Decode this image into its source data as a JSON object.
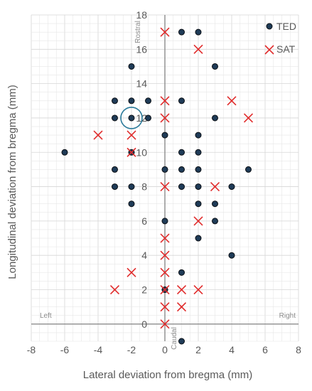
{
  "chart_data": {
    "type": "scatter",
    "xlabel": "Lateral deviation from bregma (mm)",
    "ylabel": "Longitudinal deviation from bregma (mm)",
    "xlim": [
      -8,
      8
    ],
    "ylim": [
      -1,
      18
    ],
    "x_ticks": [
      -8,
      -6,
      -4,
      -2,
      0,
      2,
      4,
      6,
      8
    ],
    "y_ticks": [
      0,
      2,
      4,
      6,
      8,
      10,
      12,
      14,
      16,
      18
    ],
    "tick_labels_x": [
      "-8",
      "-6",
      "-4",
      "-2",
      "0",
      "2",
      "4",
      "6",
      "8"
    ],
    "tick_labels_y": [
      "0",
      "2",
      "4",
      "6",
      "8",
      "10",
      "12",
      "14",
      "16",
      "18"
    ],
    "grid": true,
    "legend_position": "top-right",
    "annotations": {
      "rostral": "Rostral",
      "caudal": "Caudal",
      "left": "Left",
      "right": "Right"
    },
    "highlight": {
      "x": -2,
      "y": 12
    },
    "series": [
      {
        "name": "TED",
        "marker": "circle",
        "color": "#1f3b57",
        "points": [
          [
            1,
            17
          ],
          [
            2,
            17
          ],
          [
            -2,
            15
          ],
          [
            3,
            15
          ],
          [
            -3,
            13
          ],
          [
            -2,
            13
          ],
          [
            -1,
            13
          ],
          [
            1,
            13
          ],
          [
            -3,
            12
          ],
          [
            -2,
            12
          ],
          [
            -1,
            12
          ],
          [
            3,
            12
          ],
          [
            0,
            11
          ],
          [
            2,
            11
          ],
          [
            -6,
            10
          ],
          [
            -2,
            10
          ],
          [
            1,
            10
          ],
          [
            2,
            10
          ],
          [
            -3,
            9
          ],
          [
            0,
            9
          ],
          [
            1,
            9
          ],
          [
            2,
            9
          ],
          [
            5,
            9
          ],
          [
            -3,
            8
          ],
          [
            -2,
            8
          ],
          [
            1,
            8
          ],
          [
            2,
            8
          ],
          [
            4,
            8
          ],
          [
            -2,
            7
          ],
          [
            2,
            7
          ],
          [
            3,
            7
          ],
          [
            0,
            6
          ],
          [
            3,
            6
          ],
          [
            2,
            5
          ],
          [
            4,
            4
          ],
          [
            1,
            3
          ],
          [
            0,
            2
          ],
          [
            1,
            -1
          ]
        ]
      },
      {
        "name": "SAT",
        "marker": "x",
        "color": "#e02b2b",
        "points": [
          [
            0,
            17
          ],
          [
            2,
            16
          ],
          [
            0,
            13
          ],
          [
            4,
            13
          ],
          [
            0,
            12
          ],
          [
            5,
            12
          ],
          [
            -4,
            11
          ],
          [
            -2,
            11
          ],
          [
            -2,
            10
          ],
          [
            0,
            8
          ],
          [
            3,
            8
          ],
          [
            2,
            6
          ],
          [
            0,
            5
          ],
          [
            0,
            4
          ],
          [
            -2,
            3
          ],
          [
            0,
            3
          ],
          [
            -3,
            2
          ],
          [
            0,
            2
          ],
          [
            1,
            2
          ],
          [
            2,
            2
          ],
          [
            0,
            1
          ],
          [
            1,
            1
          ],
          [
            0,
            0
          ]
        ]
      }
    ]
  }
}
